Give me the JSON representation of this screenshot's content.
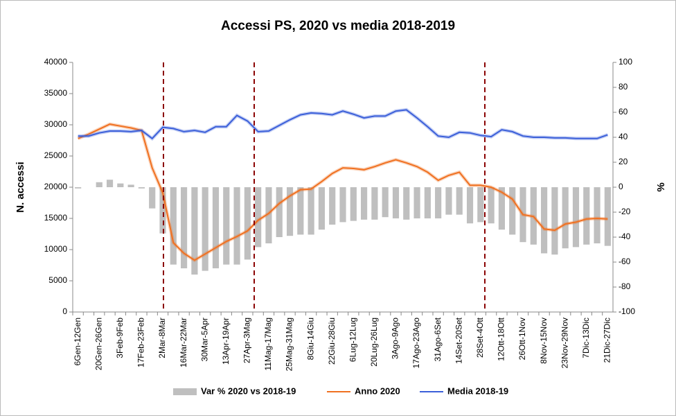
{
  "chart_data": {
    "type": "combo",
    "title": "Accessi PS,  2020 vs media 2018-2019",
    "y_label": "N. accessi",
    "y2_label": "%",
    "categories": [
      "6Gen-12Gen",
      null,
      "20Gen-26Gen",
      null,
      "3Feb-9Feb",
      null,
      "17Feb-23Feb",
      null,
      "2Mar-8Mar",
      null,
      "16Mar-22Mar",
      null,
      "30Mar-5Apr",
      null,
      "13Apr-19Apr",
      null,
      "27Apr-3Mag",
      null,
      "11Mag-17Mag",
      null,
      "25Mag-31Mag",
      null,
      "8Giu-14Giu",
      null,
      "22Giu-28Giu",
      null,
      "6Lug-12Lug",
      null,
      "20Lug-26Lug",
      null,
      "3Ago-9Ago",
      null,
      "17Ago-23Ago",
      null,
      "31Ago-6Set",
      null,
      "14Set-20Set",
      null,
      "28Set-4Ott",
      null,
      "12Ott-18Ott",
      null,
      "26Ott-1Nov",
      null,
      "8Nov-15Nov",
      null,
      "23Nov-29Nov",
      null,
      "7Dic-13Dic",
      null,
      "21Dic-27Dic"
    ],
    "ylim": [
      0,
      40000
    ],
    "yticks": [
      0,
      5000,
      10000,
      15000,
      20000,
      25000,
      30000,
      35000,
      40000
    ],
    "y2lim": [
      -100,
      100
    ],
    "y2ticks": [
      -100,
      -80,
      -60,
      -40,
      -20,
      0,
      20,
      40,
      60,
      80,
      100
    ],
    "legend": "bottom",
    "series": [
      {
        "name": "Var % 2020 vs 2018-19",
        "type": "bar",
        "axis": "y2",
        "color": "#bfbfbf",
        "values": [
          -1,
          0,
          4,
          6,
          3,
          2,
          -1,
          -17,
          -37,
          -62,
          -65,
          -70,
          -67,
          -65,
          -62,
          -62,
          -58,
          -48,
          -45,
          -40,
          -39,
          -38,
          -38,
          -34,
          -30,
          -28,
          -27,
          -26,
          -26,
          -24,
          -25,
          -26,
          -25,
          -25,
          -25,
          -22,
          -22,
          -29,
          -28,
          -29,
          -34,
          -38,
          -44,
          -46,
          -53,
          -54,
          -49,
          -48,
          -46,
          -45,
          -47
        ]
      },
      {
        "name": "Anno 2020",
        "type": "line",
        "color": "#f07020",
        "values": [
          27800,
          28500,
          29300,
          30100,
          29800,
          29500,
          29100,
          23100,
          19100,
          11100,
          9400,
          8300,
          9300,
          10300,
          11300,
          12100,
          13000,
          14700,
          15800,
          17400,
          18600,
          19600,
          19700,
          20900,
          22200,
          23100,
          23000,
          22800,
          23300,
          23900,
          24400,
          23900,
          23300,
          22400,
          21100,
          21900,
          22400,
          20300,
          20300,
          20000,
          19200,
          18100,
          15600,
          15300,
          13300,
          13100,
          14100,
          14400,
          14900,
          15000,
          14900
        ]
      },
      {
        "name": "Media 2018-19",
        "type": "line",
        "color": "#3b5fd9",
        "values": [
          28200,
          28200,
          28700,
          29000,
          29000,
          28900,
          29100,
          27800,
          29600,
          29400,
          28900,
          29100,
          28800,
          29700,
          29700,
          31500,
          30600,
          28900,
          29000,
          29900,
          30800,
          31600,
          31900,
          31800,
          31600,
          32200,
          31700,
          31100,
          31400,
          31400,
          32200,
          32400,
          31100,
          29700,
          28200,
          28000,
          28800,
          28700,
          28300,
          28100,
          29200,
          28900,
          28200,
          28000,
          28000,
          27900,
          27900,
          27800,
          27800,
          27800,
          28400
        ]
      }
    ]
  }
}
